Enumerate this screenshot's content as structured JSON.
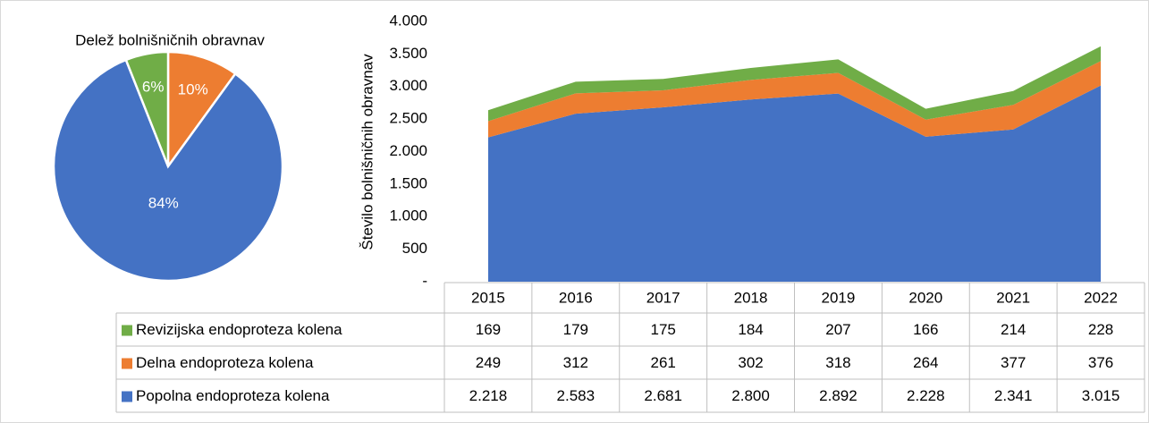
{
  "chart_data": [
    {
      "type": "pie",
      "title": "Delež bolnišničnih obravnav",
      "values": [
        10,
        84,
        6
      ],
      "value_labels": [
        "10%",
        "84%",
        "6%"
      ],
      "colors": [
        "#ed7d31",
        "#4472c4",
        "#70ad47"
      ]
    },
    {
      "type": "area",
      "stacked": true,
      "ylabel": "Število bolnišničnih obravnav",
      "categories": [
        "2015",
        "2016",
        "2017",
        "2018",
        "2019",
        "2020",
        "2021",
        "2022"
      ],
      "series": [
        {
          "name": "Popolna endoproteza kolena",
          "color": "#4472c4",
          "values": [
            2218,
            2583,
            2681,
            2800,
            2892,
            2228,
            2341,
            3015
          ],
          "value_labels": [
            "2.218",
            "2.583",
            "2.681",
            "2.800",
            "2.892",
            "2.228",
            "2.341",
            "3.015"
          ]
        },
        {
          "name": "Delna endoproteza kolena",
          "color": "#ed7d31",
          "values": [
            249,
            312,
            261,
            302,
            318,
            264,
            377,
            376
          ],
          "value_labels": [
            "249",
            "312",
            "261",
            "302",
            "318",
            "264",
            "377",
            "376"
          ]
        },
        {
          "name": "Revizijska endoproteza kolena",
          "color": "#70ad47",
          "values": [
            169,
            179,
            175,
            184,
            207,
            166,
            214,
            228
          ],
          "value_labels": [
            "169",
            "179",
            "175",
            "184",
            "207",
            "166",
            "214",
            "228"
          ]
        }
      ],
      "ylim": [
        0,
        4000
      ],
      "yticks": [
        {
          "value": 0,
          "label": "-"
        },
        500,
        {
          "value": 1000,
          "label": "1.000"
        },
        {
          "value": 1500,
          "label": "1.500"
        },
        {
          "value": 2000,
          "label": "2.000"
        },
        {
          "value": 2500,
          "label": "2.500"
        },
        {
          "value": 3000,
          "label": "3.000"
        },
        {
          "value": 3500,
          "label": "3.500"
        },
        {
          "value": 4000,
          "label": "4.000"
        }
      ],
      "grid": false
    }
  ]
}
